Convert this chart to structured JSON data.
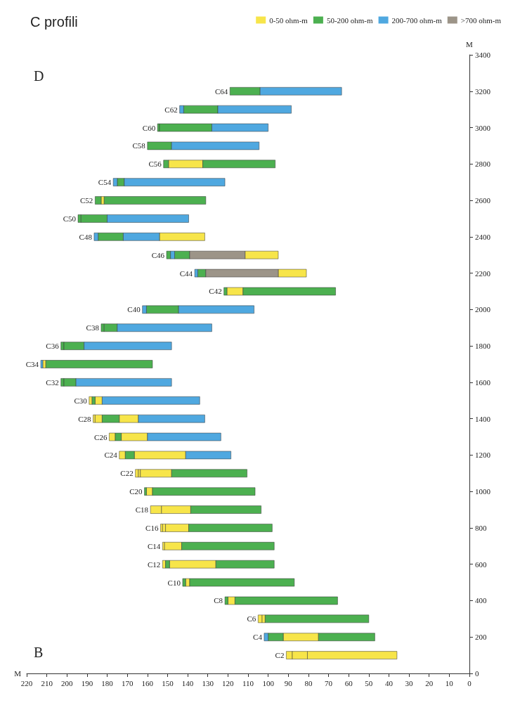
{
  "chart_data": {
    "type": "bar",
    "orientation": "horizontal",
    "title": "C profili",
    "xlabel": "M",
    "ylabel": "M",
    "x": [
      100,
      200,
      300,
      400,
      500,
      600,
      700,
      800,
      900,
      1000,
      1100,
      1200,
      1300,
      1400,
      1500,
      1600,
      1700,
      1800,
      1900,
      2000,
      2100,
      2200,
      2300,
      2400,
      2500,
      2600,
      2700,
      2800,
      2900,
      3000,
      3100,
      3200
    ],
    "series": [
      {
        "name": "0-50 ohm-m",
        "color": "#f7e54a",
        "base": [
          88,
          75,
          103,
          116.5,
          139,
          151,
          151.5,
          152.5,
          153,
          157.5,
          164.5,
          171,
          176,
          186,
          187.5,
          null,
          210.5,
          null,
          null,
          null,
          112.5,
          81,
          95,
          131.5,
          null,
          181.5,
          null,
          132.5,
          null,
          null,
          null,
          null
        ],
        "values": [
          3,
          17.5,
          2,
          3.5,
          2,
          1.5,
          1,
          1,
          5.5,
          3,
          1.5,
          3,
          3,
          1,
          1.5,
          null,
          1.5,
          null,
          null,
          null,
          8,
          14,
          16.5,
          22.5,
          null,
          1.5,
          null,
          17,
          null,
          null,
          null,
          null
        ]
      },
      {
        "color": "#f7e54a",
        "base": [
          80.5,
          null,
          101.5,
          null,
          null,
          126,
          143,
          151,
          138.5,
          null,
          163.5,
          141,
          160,
          182.5,
          182.5,
          null,
          null,
          null,
          null,
          null,
          null,
          null,
          null,
          null,
          null,
          null,
          null,
          null,
          null,
          null,
          null,
          null
        ],
        "values": [
          7.5,
          null,
          1.5,
          null,
          null,
          23,
          8.5,
          1.5,
          14.5,
          null,
          1,
          25.5,
          13,
          3.5,
          3.5,
          null,
          null,
          null,
          null,
          null,
          null,
          null,
          null,
          null,
          null,
          null,
          null,
          null,
          null,
          null,
          null,
          null
        ]
      },
      {
        "color": "#f7e54a",
        "base": [
          36,
          null,
          null,
          null,
          null,
          null,
          null,
          139.5,
          null,
          null,
          148,
          null,
          null,
          164.5,
          null,
          null,
          null,
          null,
          null,
          null,
          null,
          null,
          null,
          null,
          null,
          null,
          null,
          null,
          null,
          null,
          null,
          null
        ],
        "values": [
          44.5,
          null,
          null,
          null,
          null,
          null,
          null,
          11.5,
          null,
          null,
          15.5,
          null,
          null,
          9.5,
          null,
          null,
          null,
          null,
          null,
          null,
          null,
          null,
          null,
          null,
          null,
          null,
          null,
          null,
          null,
          null,
          null,
          null
        ]
      },
      {
        "name": "50-200 ohm-m",
        "color": "#4cb050",
        "base": [
          null,
          92.5,
          50,
          120,
          141,
          149,
          97,
          98,
          103.5,
          160.5,
          110.5,
          166.5,
          173,
          174,
          186,
          201.5,
          157.5,
          201.5,
          181.5,
          144.5,
          120.5,
          131,
          148.5,
          172,
          193,
          183,
          171.5,
          149.5,
          148,
          154,
          125,
          104
        ],
        "values": [
          null,
          7.5,
          51.5,
          1.5,
          1.5,
          2,
          46,
          41.5,
          35,
          1,
          37.5,
          4.5,
          3,
          8.5,
          1.5,
          1.5,
          53,
          1.5,
          1.5,
          16,
          1.5,
          4,
          2,
          12.5,
          1.5,
          3,
          3.5,
          2.5,
          12,
          1,
          17,
          15
        ]
      },
      {
        "color": "#4cb050",
        "base": [
          null,
          47,
          null,
          65.5,
          87,
          97,
          null,
          null,
          null,
          106.5,
          null,
          null,
          null,
          null,
          null,
          195.5,
          null,
          191.5,
          175,
          null,
          66.5,
          null,
          139,
          null,
          180,
          131,
          null,
          96.5,
          null,
          128,
          null,
          null
        ],
        "values": [
          null,
          28,
          null,
          51,
          52,
          29,
          null,
          null,
          null,
          51,
          null,
          null,
          null,
          null,
          null,
          6,
          null,
          10,
          6.5,
          null,
          46,
          null,
          7.5,
          null,
          13,
          50.5,
          null,
          36,
          null,
          26,
          null,
          null
        ]
      },
      {
        "name": "200-700 ohm-m",
        "color": "#4fa8e0",
        "base": [
          null,
          100,
          null,
          null,
          null,
          null,
          null,
          null,
          null,
          null,
          null,
          118.5,
          123.5,
          131.5,
          134,
          148,
          212,
          148,
          128,
          160.5,
          null,
          135,
          146.5,
          184.5,
          139.5,
          null,
          175,
          null,
          104.5,
          100,
          142,
          63.5
        ],
        "values": [
          null,
          2,
          null,
          null,
          null,
          null,
          null,
          null,
          null,
          null,
          null,
          22.5,
          36.5,
          33,
          48.5,
          47.5,
          1,
          43.5,
          47,
          2,
          null,
          1.5,
          2,
          2,
          40.5,
          null,
          2,
          null,
          43.5,
          28,
          2,
          40.5
        ]
      },
      {
        "color": "#4fa8e0",
        "base": [
          null,
          null,
          null,
          null,
          null,
          null,
          null,
          null,
          null,
          null,
          null,
          null,
          null,
          null,
          null,
          null,
          null,
          null,
          null,
          107,
          null,
          null,
          null,
          154,
          null,
          null,
          121.5,
          null,
          null,
          null,
          88.5,
          null
        ],
        "values": [
          null,
          null,
          null,
          null,
          null,
          null,
          null,
          null,
          null,
          null,
          null,
          null,
          null,
          null,
          null,
          null,
          null,
          null,
          null,
          37.5,
          null,
          null,
          null,
          18,
          null,
          null,
          50,
          null,
          null,
          null,
          36.5,
          null
        ]
      },
      {
        "name": ">700 ohm-m",
        "color": "#9c9488",
        "base": [
          null,
          null,
          null,
          null,
          null,
          null,
          null,
          null,
          null,
          null,
          null,
          null,
          null,
          null,
          null,
          null,
          null,
          null,
          null,
          null,
          null,
          95,
          111.5,
          null,
          null,
          null,
          null,
          null,
          null,
          null,
          null,
          null
        ],
        "values": [
          null,
          null,
          null,
          null,
          null,
          null,
          null,
          null,
          null,
          null,
          null,
          null,
          null,
          null,
          null,
          null,
          null,
          null,
          null,
          null,
          null,
          36,
          27.5,
          null,
          null,
          null,
          null,
          null,
          null,
          null,
          null,
          null
        ]
      }
    ],
    "xlim": [
      220,
      0
    ],
    "xticks": [
      0,
      10,
      20,
      30,
      40,
      50,
      60,
      70,
      80,
      90,
      100,
      110,
      120,
      130,
      140,
      150,
      160,
      170,
      180,
      190,
      200,
      210,
      220
    ],
    "ylim": [
      0,
      3400
    ],
    "yticks": [
      0,
      200,
      400,
      600,
      800,
      1000,
      1200,
      1400,
      1600,
      1800,
      2000,
      2200,
      2400,
      2600,
      2800,
      3000,
      3200,
      3400
    ],
    "legend": "top right",
    "grid": false,
    "annotations": [
      "B",
      "D",
      {
        "text": "C2",
        "x": 91,
        "y": 100
      },
      {
        "text": "C4",
        "x": 102,
        "y": 200
      },
      {
        "text": "C6",
        "x": 105,
        "y": 300
      },
      {
        "text": "C8",
        "x": 121.5,
        "y": 400
      },
      {
        "text": "C10",
        "x": 142.5,
        "y": 500
      },
      {
        "text": "C12",
        "x": 152.5,
        "y": 600
      },
      {
        "text": "C14",
        "x": 152.5,
        "y": 700
      },
      {
        "text": "C16",
        "x": 153.5,
        "y": 800
      },
      {
        "text": "C18",
        "x": 158.5,
        "y": 900
      },
      {
        "text": "C20",
        "x": 161.5,
        "y": 1000
      },
      {
        "text": "C22",
        "x": 166,
        "y": 1100
      },
      {
        "text": "C24",
        "x": 174,
        "y": 1200
      },
      {
        "text": "C26",
        "x": 179,
        "y": 1300
      },
      {
        "text": "C28",
        "x": 187,
        "y": 1400
      },
      {
        "text": "C30",
        "x": 189,
        "y": 1500
      },
      {
        "text": "C32",
        "x": 203,
        "y": 1600
      },
      {
        "text": "C34",
        "x": 213,
        "y": 1700
      },
      {
        "text": "C36",
        "x": 203,
        "y": 1800
      },
      {
        "text": "C38",
        "x": 183,
        "y": 1900
      },
      {
        "text": "C40",
        "x": 162.5,
        "y": 2000
      },
      {
        "text": "C42",
        "x": 122,
        "y": 2100
      },
      {
        "text": "C44",
        "x": 136.5,
        "y": 2200
      },
      {
        "text": "C46",
        "x": 150.5,
        "y": 2300
      },
      {
        "text": "C48",
        "x": 186.5,
        "y": 2400
      },
      {
        "text": "C50",
        "x": 194.5,
        "y": 2500
      },
      {
        "text": "C52",
        "x": 186,
        "y": 2600
      },
      {
        "text": "C54",
        "x": 177,
        "y": 2700
      },
      {
        "text": "C56",
        "x": 152,
        "y": 2800
      },
      {
        "text": "C58",
        "x": 160,
        "y": 2900
      },
      {
        "text": "C60",
        "x": 155,
        "y": 3000
      },
      {
        "text": "C62",
        "x": 144,
        "y": 3100
      },
      {
        "text": "C64",
        "x": 119,
        "y": 3200
      }
    ]
  }
}
